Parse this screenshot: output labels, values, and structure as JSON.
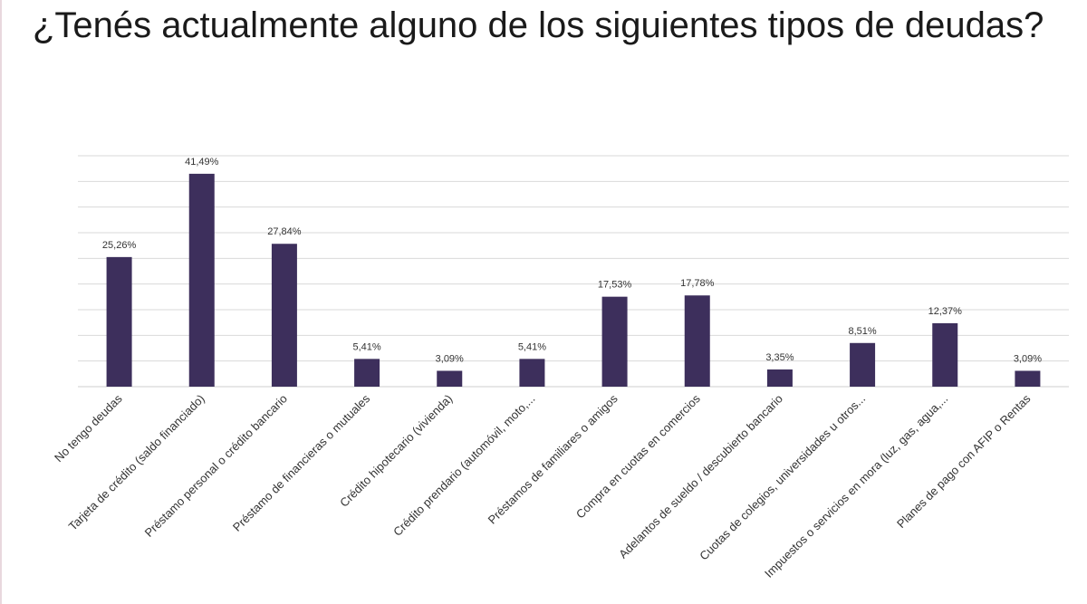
{
  "title": "¿Tenés actualmente alguno de los siguientes tipos de deudas?",
  "colors": {
    "bar": "#3d2f5c",
    "background": "#ffffff"
  },
  "chart_data": {
    "type": "bar",
    "title": "¿Tenés actualmente alguno de los siguientes tipos de deudas?",
    "categories": [
      "No tengo deudas",
      "Tarjeta de crédito (saldo financiado)",
      "Préstamo personal o crédito bancario",
      "Préstamo de financieras o mutuales",
      "Crédito hipotecario (vivienda)",
      "Crédito prendario (automóvil, moto,...",
      "Préstamos de familiares o amigos",
      "Compra en cuotas en comercios",
      "Adelantos de sueldo / descubierto bancario",
      "Cuotas de colegios, universidades u otros...",
      "Impuestos o servicios en mora (luz, gas, agua,...",
      "Planes de pago con AFIP o Rentas"
    ],
    "values": [
      25.26,
      41.49,
      27.84,
      5.41,
      3.09,
      5.41,
      17.53,
      17.78,
      3.35,
      8.51,
      12.37,
      3.09
    ],
    "value_labels": [
      "25,26%",
      "41,49%",
      "27,84%",
      "5,41%",
      "3,09%",
      "5,41%",
      "17,53%",
      "17,78%",
      "3,35%",
      "8,51%",
      "12,37%",
      "3,09%"
    ],
    "ylim": [
      0,
      45
    ],
    "grid": true,
    "legend": "none",
    "xlabel": "",
    "ylabel": ""
  }
}
